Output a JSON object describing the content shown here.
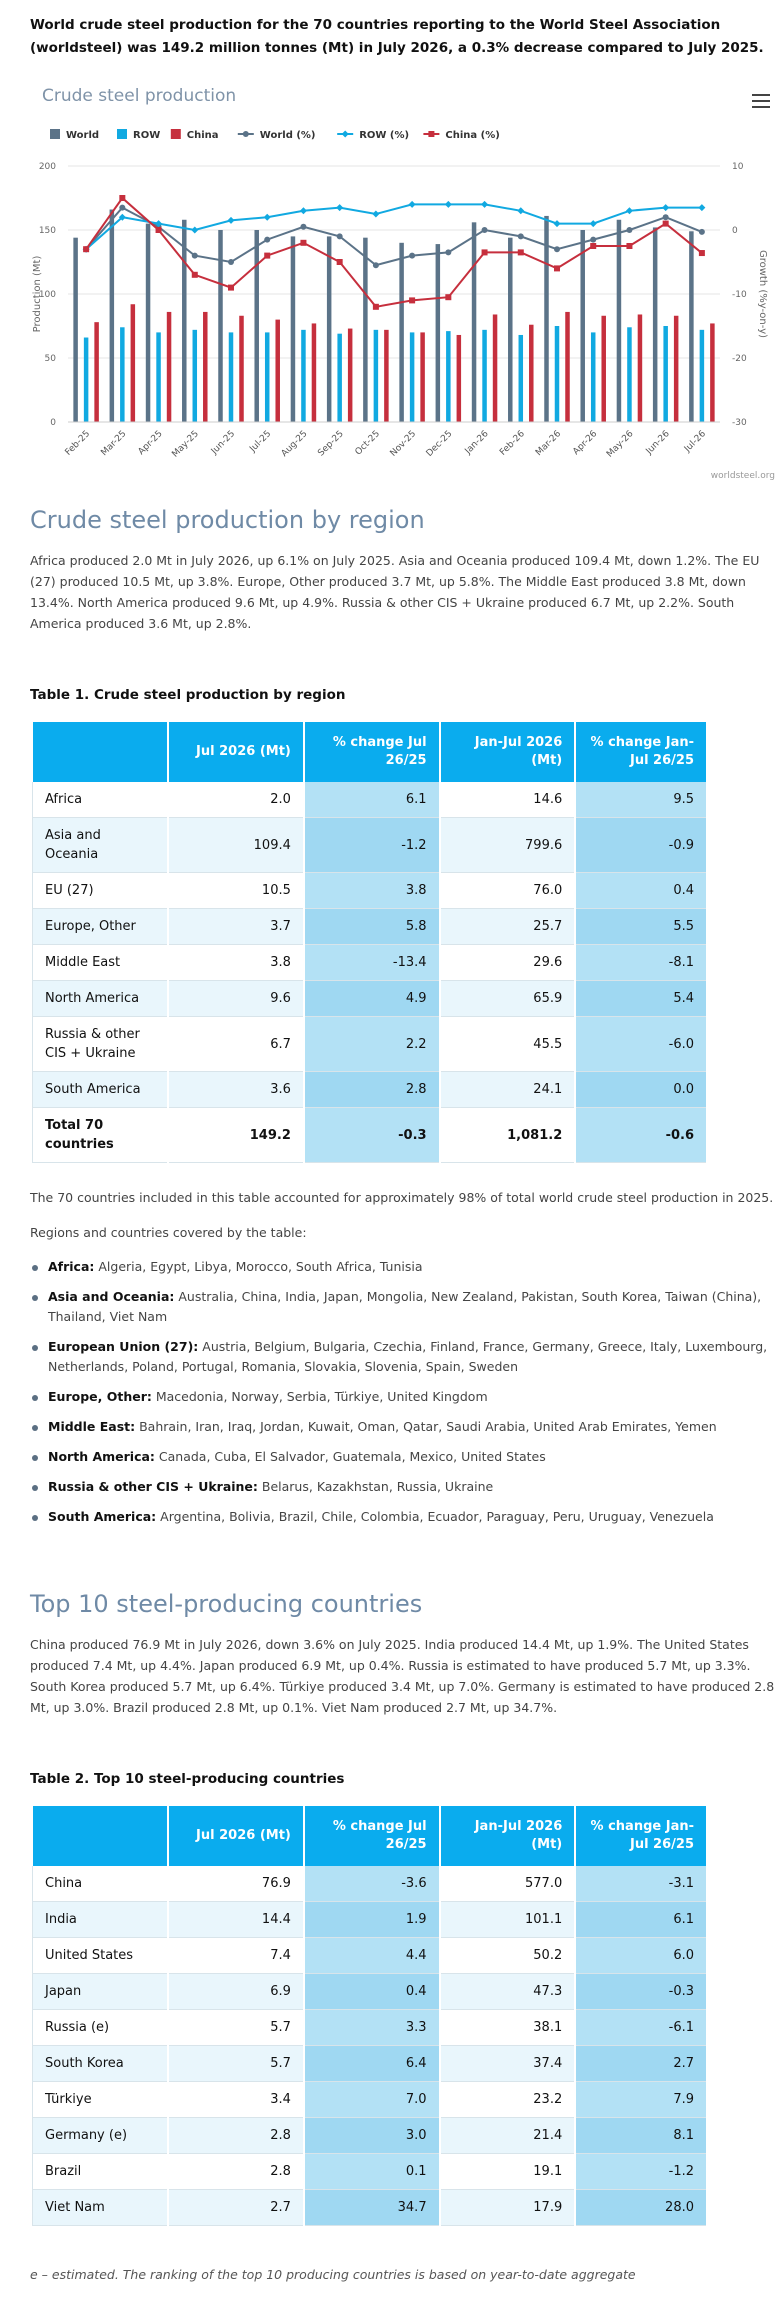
{
  "intro": "World crude steel production for the 70 countries reporting to the World Steel Association (worldsteel) was 149.2 million tonnes (Mt) in July 2026, a 0.3% decrease compared to July 2025.",
  "chart": {
    "title": "Crude steel production",
    "credit": "worldsteel.org",
    "menu_icon": "hamburger-menu-icon"
  },
  "chart_data": {
    "type": "bar",
    "title": "Crude steel production",
    "xlabel": "",
    "ylabel": "Production (Mt)",
    "y2label": "Growth (%y-on-y)",
    "ylim": [
      0,
      200
    ],
    "y2lim": [
      -30,
      10
    ],
    "yticks": [
      0,
      50,
      100,
      150,
      200
    ],
    "y2ticks": [
      -30,
      -20,
      -10,
      0,
      10
    ],
    "legend_position": "top-left",
    "grid": true,
    "categories": [
      "Feb-25",
      "Mar-25",
      "Apr-25",
      "May-25",
      "Jun-25",
      "Jul-25",
      "Aug-25",
      "Sep-25",
      "Oct-25",
      "Nov-25",
      "Dec-25",
      "Jan-26",
      "Feb-26",
      "Mar-26",
      "Apr-26",
      "May-26",
      "Jun-26",
      "Jul-26"
    ],
    "series": [
      {
        "name": "World",
        "kind": "bar",
        "axis": "left",
        "color": "#5b7388",
        "values": [
          144,
          166,
          155,
          158,
          150,
          150,
          145,
          145,
          144,
          140,
          139,
          156,
          144,
          161,
          150,
          158,
          152,
          149
        ]
      },
      {
        "name": "ROW",
        "kind": "bar",
        "axis": "left",
        "color": "#11a9e1",
        "values": [
          66,
          74,
          70,
          72,
          70,
          70,
          72,
          69,
          72,
          70,
          71,
          72,
          68,
          75,
          70,
          74,
          75,
          72
        ]
      },
      {
        "name": "China",
        "kind": "bar",
        "axis": "left",
        "color": "#c62f3d",
        "values": [
          78,
          92,
          86,
          86,
          83,
          80,
          77,
          73,
          72,
          70,
          68,
          84,
          76,
          86,
          83,
          84,
          83,
          77
        ]
      },
      {
        "name": "World (%)",
        "kind": "line",
        "axis": "right",
        "color": "#5b7388",
        "values": [
          -3,
          3.5,
          0.5,
          -4,
          -5,
          -1.5,
          0.5,
          -1,
          -5.5,
          -4,
          -3.5,
          0,
          -1,
          -3,
          -1.5,
          0,
          2,
          -0.3
        ]
      },
      {
        "name": "ROW (%)",
        "kind": "line",
        "axis": "right",
        "color": "#11a9e1",
        "values": [
          -3,
          2,
          1,
          0,
          1.5,
          2,
          3,
          3.5,
          2.5,
          4,
          4,
          4,
          3,
          1,
          1,
          3,
          3.5,
          3.5
        ]
      },
      {
        "name": "China (%)",
        "kind": "line",
        "axis": "right",
        "color": "#c62f3d",
        "values": [
          -3,
          5,
          0,
          -7,
          -9,
          -4,
          -2,
          -5,
          -12,
          -11,
          -10.5,
          -3.5,
          -3.5,
          -6,
          -2.5,
          -2.5,
          1,
          -3.6
        ]
      }
    ]
  },
  "section1": {
    "title": "Crude steel production by region",
    "text": "Africa produced 2.0 Mt in July 2026, up 6.1% on July 2025. Asia and Oceania produced 109.4 Mt, down 1.2%. The EU (27) produced 10.5 Mt, up 3.8%. Europe, Other produced 3.7 Mt, up 5.8%. The Middle East produced 3.8 Mt, down 13.4%. North America produced 9.6 Mt, up 4.9%. Russia & other CIS + Ukraine produced 6.7 Mt, up 2.2%. South America produced 3.6 Mt, up 2.8%."
  },
  "table1": {
    "title": "Table 1. Crude steel production by region",
    "headers": [
      "",
      "Jul 2026 (Mt)",
      "% change Jul 26/25",
      "Jan-Jul 2026 (Mt)",
      "% change Jan-Jul 26/25"
    ],
    "rows": [
      [
        "Africa",
        "2.0",
        "6.1",
        "14.6",
        "9.5"
      ],
      [
        "Asia and Oceania",
        "109.4",
        "-1.2",
        "799.6",
        "-0.9"
      ],
      [
        "EU (27)",
        "10.5",
        "3.8",
        "76.0",
        "0.4"
      ],
      [
        "Europe, Other",
        "3.7",
        "5.8",
        "25.7",
        "5.5"
      ],
      [
        "Middle East",
        "3.8",
        "-13.4",
        "29.6",
        "-8.1"
      ],
      [
        "North America",
        "9.6",
        "4.9",
        "65.9",
        "5.4"
      ],
      [
        "Russia & other CIS + Ukraine",
        "6.7",
        "2.2",
        "45.5",
        "-6.0"
      ],
      [
        "South America",
        "3.6",
        "2.8",
        "24.1",
        "0.0"
      ],
      [
        "Total 70 countries",
        "149.2",
        "-0.3",
        "1,081.2",
        "-0.6"
      ]
    ]
  },
  "coverage": {
    "note": "The 70 countries included in this table accounted for approximately 98% of total world crude steel production in 2025.",
    "intro": "Regions and countries covered by the table:",
    "regions": [
      {
        "name": "Africa:",
        "countries": "Algeria, Egypt, Libya, Morocco, South Africa, Tunisia"
      },
      {
        "name": "Asia and Oceania:",
        "countries": "Australia, China, India, Japan, Mongolia, New Zealand, Pakistan, South Korea, Taiwan (China), Thailand, Viet Nam"
      },
      {
        "name": "European Union (27):",
        "countries": "Austria, Belgium, Bulgaria, Czechia, Finland, France, Germany, Greece, Italy, Luxembourg, Netherlands, Poland, Portugal, Romania, Slovakia, Slovenia, Spain, Sweden"
      },
      {
        "name": "Europe, Other:",
        "countries": "Macedonia, Norway, Serbia, Türkiye, United Kingdom"
      },
      {
        "name": "Middle East:",
        "countries": "Bahrain, Iran, Iraq, Jordan, Kuwait, Oman, Qatar, Saudi Arabia, United Arab Emirates, Yemen"
      },
      {
        "name": "North America:",
        "countries": "Canada, Cuba, El Salvador, Guatemala, Mexico, United States"
      },
      {
        "name": "Russia & other CIS + Ukraine:",
        "countries": "Belarus, Kazakhstan, Russia, Ukraine"
      },
      {
        "name": "South America:",
        "countries": "Argentina, Bolivia, Brazil, Chile, Colombia, Ecuador, Paraguay, Peru, Uruguay, Venezuela"
      }
    ]
  },
  "section2": {
    "title": "Top 10 steel-producing countries",
    "text": "China produced 76.9 Mt in July 2026, down 3.6% on July 2025. India produced 14.4 Mt, up 1.9%. The United States produced 7.4 Mt, up 4.4%. Japan produced 6.9 Mt, up 0.4%. Russia is estimated to have produced 5.7 Mt, up 3.3%. South Korea produced 5.7 Mt, up 6.4%. Türkiye produced 3.4 Mt, up 7.0%. Germany is estimated to have produced 2.8 Mt, up 3.0%. Brazil produced 2.8 Mt, up 0.1%. Viet Nam produced 2.7 Mt, up 34.7%."
  },
  "table2": {
    "title": "Table 2. Top 10 steel-producing countries",
    "headers": [
      "",
      "Jul 2026 (Mt)",
      "% change Jul 26/25",
      "Jan-Jul 2026 (Mt)",
      "% change Jan-Jul 26/25"
    ],
    "rows": [
      [
        "China",
        "76.9",
        "-3.6",
        "577.0",
        "-3.1"
      ],
      [
        "India",
        "14.4",
        "1.9",
        "101.1",
        "6.1"
      ],
      [
        "United States",
        "7.4",
        "4.4",
        "50.2",
        "6.0"
      ],
      [
        "Japan",
        "6.9",
        "0.4",
        "47.3",
        "-0.3"
      ],
      [
        "Russia (e)",
        "5.7",
        "3.3",
        "38.1",
        "-6.1"
      ],
      [
        "South Korea",
        "5.7",
        "6.4",
        "37.4",
        "2.7"
      ],
      [
        "Türkiye",
        "3.4",
        "7.0",
        "23.2",
        "7.9"
      ],
      [
        "Germany (e)",
        "2.8",
        "3.0",
        "21.4",
        "8.1"
      ],
      [
        "Brazil",
        "2.8",
        "0.1",
        "19.1",
        "-1.2"
      ],
      [
        "Viet Nam",
        "2.7",
        "34.7",
        "17.9",
        "28.0"
      ]
    ]
  },
  "footnote": "e – estimated. The ranking of the top 10 producing countries is based on year-to-date aggregate"
}
